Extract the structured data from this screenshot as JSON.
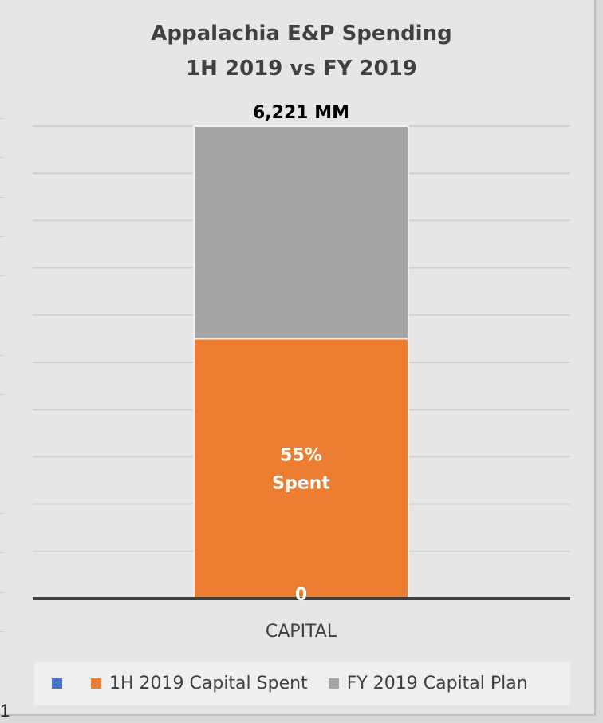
{
  "chart_data": {
    "type": "bar",
    "stacked": true,
    "title": "Appalachia E&P Spending",
    "subtitle": "1H 2019 vs FY 2019",
    "categories": [
      "CAPITAL"
    ],
    "series": [
      {
        "name": "",
        "values": [
          0
        ],
        "color": "#4472c4",
        "label": "0"
      },
      {
        "name": "1H 2019 Capital Spent",
        "values": [
          3421
        ],
        "color": "#ed7d31",
        "label": "55%\nSpent"
      },
      {
        "name": "FY 2019 Capital Plan",
        "values": [
          2800
        ],
        "color": "#a5a5a5"
      }
    ],
    "total": 6221,
    "total_label": "6,221 MM",
    "ylim": [
      0,
      6221
    ],
    "grid": true,
    "gridlines": 10,
    "legend": "bottom"
  }
}
